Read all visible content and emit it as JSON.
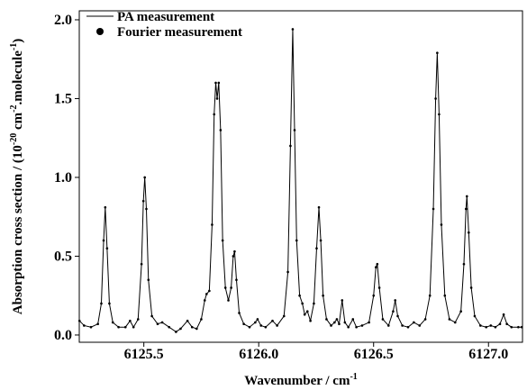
{
  "chart_data": {
    "type": "line",
    "xlabel": [
      "Wavenumber / cm",
      "-1"
    ],
    "ylabel": [
      "Absorption cross section / (10",
      "-20",
      " cm",
      "-2",
      ".molecule",
      "-1",
      ")"
    ],
    "xlim": [
      6125.219,
      6127.148
    ],
    "ylim": [
      -0.046,
      2.057
    ],
    "xticks": [
      6125.5,
      {
        "value": 6126.0,
        "label": "6126.0"
      },
      6126.5,
      {
        "value": 6127.0,
        "label": "6127.0"
      }
    ],
    "yticks": [
      {
        "value": 0.0,
        "label": "0.0"
      },
      0.5,
      {
        "value": 1.0,
        "label": "1.0"
      },
      1.5,
      {
        "value": 2.0,
        "label": "2.0"
      }
    ],
    "x": [
      6125.22,
      6125.24,
      6125.27,
      6125.3,
      6125.315,
      6125.325,
      6125.332,
      6125.34,
      6125.35,
      6125.365,
      6125.39,
      6125.42,
      6125.44,
      6125.455,
      6125.475,
      6125.49,
      6125.498,
      6125.504,
      6125.511,
      6125.52,
      6125.535,
      6125.56,
      6125.58,
      6125.61,
      6125.64,
      6125.66,
      6125.69,
      6125.71,
      6125.73,
      6125.75,
      6125.765,
      6125.773,
      6125.785,
      6125.797,
      6125.806,
      6125.813,
      6125.819,
      6125.826,
      6125.834,
      6125.843,
      6125.855,
      6125.868,
      6125.88,
      6125.889,
      6125.895,
      6125.903,
      6125.915,
      6125.935,
      6125.96,
      6125.985,
      6125.995,
      6126.01,
      6126.03,
      6126.06,
      6126.08,
      6126.11,
      6126.127,
      6126.138,
      6126.148,
      6126.156,
      6126.165,
      6126.178,
      6126.19,
      6126.2,
      6126.212,
      6126.225,
      6126.24,
      6126.252,
      6126.262,
      6126.27,
      6126.28,
      6126.295,
      6126.315,
      6126.33,
      6126.34,
      6126.35,
      6126.363,
      6126.375,
      6126.39,
      6126.41,
      6126.425,
      6126.45,
      6126.48,
      6126.5,
      6126.51,
      6126.516,
      6126.525,
      6126.54,
      6126.565,
      6126.585,
      6126.594,
      6126.605,
      6126.625,
      6126.65,
      6126.675,
      6126.7,
      6126.725,
      6126.745,
      6126.76,
      6126.77,
      6126.777,
      6126.785,
      6126.795,
      6126.81,
      6126.83,
      6126.855,
      6126.88,
      6126.893,
      6126.902,
      6126.906,
      6126.914,
      6126.925,
      6126.94,
      6126.965,
      6126.99,
      6127.01,
      6127.03,
      6127.05,
      6127.066,
      6127.08,
      6127.1,
      6127.13,
      6127.145
    ],
    "series": [
      {
        "name": "PA measurement",
        "color": "#000000",
        "style": "line",
        "values": [
          0.09,
          0.06,
          0.05,
          0.07,
          0.2,
          0.6,
          0.81,
          0.55,
          0.2,
          0.08,
          0.05,
          0.05,
          0.09,
          0.05,
          0.1,
          0.45,
          0.85,
          1.0,
          0.8,
          0.35,
          0.12,
          0.07,
          0.08,
          0.05,
          0.02,
          0.04,
          0.09,
          0.05,
          0.04,
          0.1,
          0.22,
          0.26,
          0.28,
          0.7,
          1.4,
          1.6,
          1.5,
          1.6,
          1.3,
          0.6,
          0.3,
          0.22,
          0.3,
          0.5,
          0.53,
          0.35,
          0.14,
          0.07,
          0.05,
          0.08,
          0.1,
          0.06,
          0.05,
          0.09,
          0.06,
          0.12,
          0.4,
          1.2,
          1.94,
          1.3,
          0.6,
          0.25,
          0.2,
          0.13,
          0.15,
          0.09,
          0.2,
          0.55,
          0.81,
          0.6,
          0.25,
          0.1,
          0.06,
          0.08,
          0.1,
          0.07,
          0.22,
          0.08,
          0.05,
          0.1,
          0.05,
          0.06,
          0.08,
          0.25,
          0.43,
          0.45,
          0.3,
          0.1,
          0.06,
          0.15,
          0.22,
          0.12,
          0.06,
          0.05,
          0.08,
          0.06,
          0.1,
          0.25,
          0.8,
          1.5,
          1.79,
          1.4,
          0.7,
          0.25,
          0.1,
          0.08,
          0.15,
          0.45,
          0.8,
          0.88,
          0.65,
          0.3,
          0.12,
          0.06,
          0.05,
          0.06,
          0.05,
          0.07,
          0.13,
          0.07,
          0.05,
          0.05,
          0.05
        ]
      },
      {
        "name": "Fourier measurement",
        "color": "#000000",
        "style": "dots",
        "values": [
          0.09,
          0.06,
          0.05,
          0.07,
          0.2,
          0.6,
          0.81,
          0.55,
          0.2,
          0.08,
          0.05,
          0.05,
          0.09,
          0.05,
          0.1,
          0.45,
          0.85,
          1.0,
          0.8,
          0.35,
          0.12,
          0.07,
          0.08,
          0.05,
          0.02,
          0.04,
          0.09,
          0.05,
          0.04,
          0.1,
          0.22,
          0.26,
          0.28,
          0.7,
          1.4,
          1.6,
          1.5,
          1.6,
          1.3,
          0.6,
          0.3,
          0.22,
          0.3,
          0.5,
          0.53,
          0.35,
          0.14,
          0.07,
          0.05,
          0.08,
          0.1,
          0.06,
          0.05,
          0.09,
          0.06,
          0.12,
          0.4,
          1.2,
          1.94,
          1.3,
          0.6,
          0.25,
          0.2,
          0.13,
          0.15,
          0.09,
          0.2,
          0.55,
          0.81,
          0.6,
          0.25,
          0.1,
          0.06,
          0.08,
          0.1,
          0.07,
          0.22,
          0.08,
          0.05,
          0.1,
          0.05,
          0.06,
          0.08,
          0.25,
          0.43,
          0.45,
          0.3,
          0.1,
          0.06,
          0.15,
          0.22,
          0.12,
          0.06,
          0.05,
          0.08,
          0.06,
          0.1,
          0.25,
          0.8,
          1.5,
          1.79,
          1.4,
          0.7,
          0.25,
          0.1,
          0.08,
          0.15,
          0.45,
          0.8,
          0.88,
          0.65,
          0.3,
          0.12,
          0.06,
          0.05,
          0.06,
          0.05,
          0.07,
          0.13,
          0.07,
          0.05,
          0.05,
          0.05
        ]
      }
    ]
  }
}
